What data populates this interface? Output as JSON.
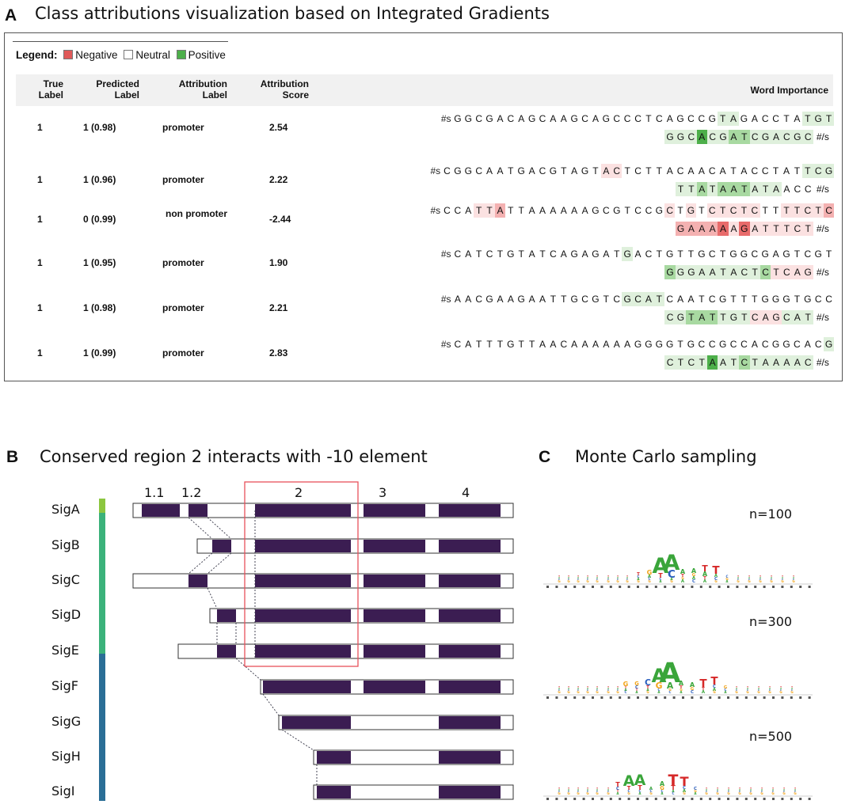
{
  "panel_a": {
    "letter": "A",
    "title": "Class attributions visualization based on Integrated Gradients",
    "legend": {
      "label": "Legend:",
      "negative": "Negative",
      "neutral": "Neutral",
      "positive": "Positive",
      "colors": {
        "negative": "#e05a5a",
        "neutral": "#ffffff",
        "positive": "#4daf4a"
      }
    },
    "headers": {
      "true_label": "True Label",
      "predicted_label": "Predicted Label",
      "attribution_label": "Attribution Label",
      "attribution_score": "Attribution Score",
      "word_importance": "Word Importance"
    },
    "rows": [
      {
        "true": "1",
        "pred": "1 (0.98)",
        "attr_label": "promoter",
        "score": "2.54",
        "line1": "GGCGACAGCAAGCAGCCCTCAGCCGTAGACCTATGT",
        "line2": "GGCACGATCGACGC",
        "w1": [
          0,
          0,
          0,
          0,
          0,
          0,
          0,
          0,
          0,
          0,
          0,
          0,
          0,
          0,
          0,
          0,
          0,
          0,
          0,
          0,
          0,
          0,
          0,
          0,
          0,
          1,
          1,
          0,
          0,
          0,
          0,
          0,
          0,
          1,
          1,
          1
        ],
        "w2": [
          1,
          1,
          1,
          3,
          1,
          1,
          2,
          2,
          1,
          1,
          1,
          1,
          1,
          1
        ]
      },
      {
        "true": "1",
        "pred": "1 (0.96)",
        "attr_label": "promoter",
        "score": "2.22",
        "line1": "CGGCAATGACGTAGTACTCTTACAACATACCTATTCG",
        "line2": "TTATAATATAACC",
        "w1": [
          0,
          0,
          0,
          0,
          0,
          0,
          0,
          0,
          0,
          0,
          0,
          0,
          0,
          0,
          0,
          -1,
          -1,
          0,
          0,
          0,
          0,
          0,
          0,
          0,
          0,
          0,
          0,
          0,
          0,
          0,
          0,
          0,
          0,
          0,
          1,
          1,
          1
        ],
        "w2": [
          1,
          1,
          2,
          1,
          2,
          2,
          2,
          1,
          1,
          1,
          0,
          0,
          0
        ]
      },
      {
        "true": "1",
        "pred": "0 (0.99)",
        "attr_label": "non promoter",
        "score": "-2.44",
        "line1": "CCATTATTAAAAAAGCGTCCGCTGTCTCTCTTTTCTC",
        "line2": "GAAAAAGATTTCT",
        "w1": [
          0,
          0,
          0,
          -1,
          -1,
          -2,
          0,
          0,
          0,
          0,
          0,
          0,
          0,
          0,
          0,
          0,
          0,
          0,
          0,
          0,
          0,
          -1,
          0,
          -1,
          0,
          -1,
          -1,
          -1,
          -1,
          -1,
          0,
          0,
          -1,
          -1,
          -1,
          -1,
          -2
        ],
        "w2": [
          -2,
          -2,
          -2,
          -2,
          -3,
          -1,
          -3,
          -1,
          -1,
          -1,
          -1,
          -1,
          -1
        ]
      },
      {
        "true": "1",
        "pred": "1 (0.95)",
        "attr_label": "promoter",
        "score": "1.90",
        "line1": "CATCTGTATCAGAGATGACTGTTGCTGGCGAGTCGT",
        "line2": "GGGAATACTCTCAG",
        "w1": [
          0,
          0,
          0,
          0,
          0,
          0,
          0,
          0,
          0,
          0,
          0,
          0,
          0,
          0,
          0,
          0,
          1,
          0,
          0,
          0,
          0,
          0,
          0,
          0,
          0,
          0,
          0,
          0,
          0,
          0,
          0,
          0,
          0,
          0,
          0,
          0
        ],
        "w2": [
          2,
          1,
          1,
          1,
          1,
          1,
          1,
          1,
          1,
          2,
          -1,
          -1,
          -1,
          -1
        ]
      },
      {
        "true": "1",
        "pred": "1 (0.98)",
        "attr_label": "promoter",
        "score": "2.21",
        "line1": "AACGAAGAATTGCGTCGCATCAATCGTTTGGGTGCC",
        "line2": "CGTATTGTCAGCAT",
        "w1": [
          0,
          0,
          0,
          0,
          0,
          0,
          0,
          0,
          0,
          0,
          0,
          0,
          0,
          0,
          0,
          0,
          1,
          1,
          1,
          1,
          0,
          0,
          0,
          0,
          0,
          0,
          0,
          0,
          0,
          0,
          0,
          0,
          0,
          0,
          0,
          0
        ],
        "w2": [
          1,
          1,
          2,
          2,
          2,
          1,
          1,
          1,
          -1,
          -1,
          -1,
          1,
          1,
          1
        ]
      },
      {
        "true": "1",
        "pred": "1 (0.99)",
        "attr_label": "promoter",
        "score": "2.83",
        "line1": "CATTTGTTAACAAAAAAGGGGTGCCGCCACGGCACG",
        "line2": "CTCTAATCTAAAAC",
        "w1": [
          0,
          0,
          0,
          0,
          0,
          0,
          0,
          0,
          0,
          0,
          0,
          0,
          0,
          0,
          0,
          0,
          0,
          0,
          0,
          0,
          0,
          0,
          0,
          0,
          0,
          0,
          0,
          0,
          0,
          0,
          0,
          0,
          0,
          0,
          0,
          1
        ],
        "w2": [
          1,
          1,
          1,
          1,
          3,
          1,
          1,
          2,
          1,
          1,
          1,
          1,
          1,
          1
        ]
      }
    ],
    "start_token": "#s",
    "end_token": "#/s"
  },
  "panel_b": {
    "letter": "B",
    "title": "Conserved region 2 interacts with -10 element",
    "domain_labels": [
      "1.1",
      "1.2",
      "2",
      "3",
      "4"
    ],
    "sigma_factors": [
      "SigA",
      "SigB",
      "SigC",
      "SigD",
      "SigE",
      "SigF",
      "SigG",
      "SigH",
      "SigI"
    ],
    "group_colors": [
      "#8cc63f",
      "#3bb27a",
      "#2a6e96"
    ]
  },
  "panel_c": {
    "letter": "C",
    "title": "Monte Carlo sampling",
    "samples": [
      "n=100",
      "n=300",
      "n=500"
    ]
  }
}
